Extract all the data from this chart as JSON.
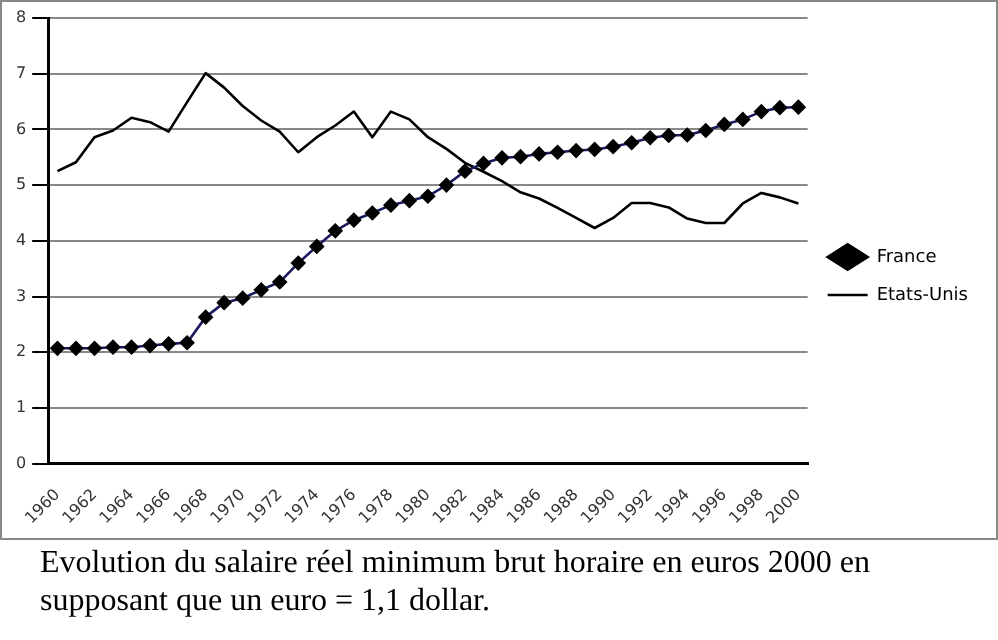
{
  "chart_data": {
    "type": "line",
    "categories": [
      "1960",
      null,
      "1962",
      null,
      "1964",
      null,
      "1966",
      null,
      "1968",
      null,
      "1970",
      null,
      "1972",
      null,
      "1974",
      null,
      "1976",
      null,
      "1978",
      null,
      "1980",
      null,
      "1982",
      null,
      "1984",
      null,
      "1986",
      null,
      "1988",
      null,
      "1990",
      null,
      "1992",
      null,
      "1994",
      null,
      "1996",
      null,
      "1998",
      null,
      "2000"
    ],
    "series": [
      {
        "name": "France",
        "color": "#1a1a5e",
        "marker": "diamond",
        "values": [
          2.07,
          2.07,
          2.07,
          2.09,
          2.09,
          2.12,
          2.15,
          2.17,
          2.63,
          2.89,
          2.97,
          3.12,
          3.26,
          3.6,
          3.9,
          4.18,
          4.37,
          4.5,
          4.64,
          4.72,
          4.8,
          5.0,
          5.25,
          5.39,
          5.49,
          5.51,
          5.56,
          5.59,
          5.62,
          5.64,
          5.69,
          5.76,
          5.85,
          5.89,
          5.9,
          5.98,
          6.09,
          6.18,
          6.32,
          6.39,
          6.4
        ]
      },
      {
        "name": "Etats-Unis",
        "color": "#000000",
        "marker": "none",
        "values": [
          5.25,
          5.41,
          5.86,
          5.98,
          6.21,
          6.13,
          5.96,
          6.49,
          7.01,
          6.75,
          6.42,
          6.16,
          5.96,
          5.59,
          5.86,
          6.07,
          6.32,
          5.86,
          6.32,
          6.18,
          5.86,
          5.65,
          5.4,
          5.24,
          5.07,
          4.87,
          4.76,
          4.59,
          4.41,
          4.23,
          4.41,
          4.68,
          4.68,
          4.6,
          4.4,
          4.32,
          4.32,
          4.67,
          4.86,
          4.78,
          4.67
        ]
      }
    ],
    "ylim": [
      0,
      8
    ],
    "yticks": [
      0,
      1,
      2,
      3,
      4,
      5,
      6,
      7,
      8
    ],
    "grid": "y",
    "legend": "right",
    "line_style": "solid",
    "annotations": [
      "Evolution du salaire réel minimum brut horaire en euros 2000 en supposant que un euro = 1,1 dollar."
    ]
  }
}
